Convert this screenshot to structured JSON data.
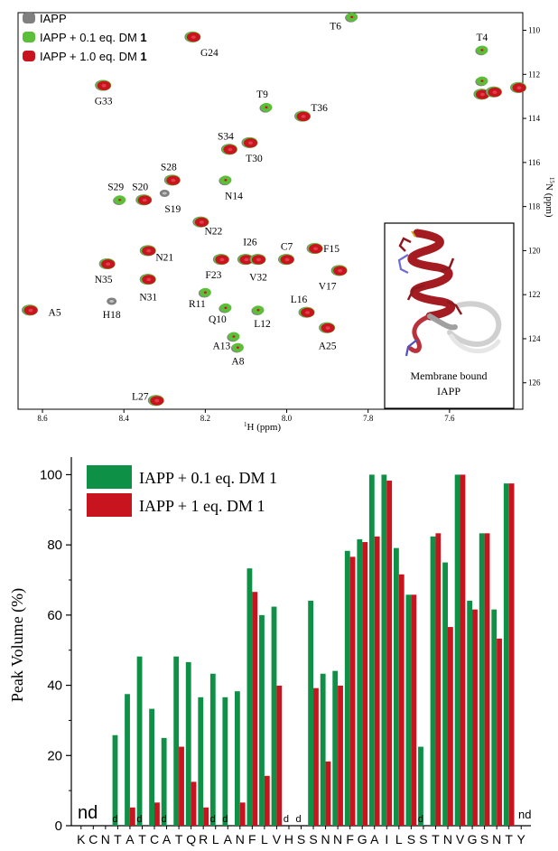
{
  "chart_data": [
    {
      "type": "scatter",
      "xlabel_sup": "1",
      "xlabel": "H (ppm)",
      "ylabel_sup": "15",
      "ylabel": "N (ppm)",
      "xlim": [
        8.66,
        7.42
      ],
      "ylim": [
        127.2,
        109.2
      ],
      "x_ticks": [
        "8.6",
        "8.4",
        "8.2",
        "8.0",
        "7.8",
        "7.6"
      ],
      "x_tick_values": [
        8.6,
        8.4,
        8.2,
        8.0,
        7.8,
        7.6
      ],
      "y_ticks": [
        "110",
        "112",
        "114",
        "116",
        "118",
        "120",
        "122",
        "124",
        "126"
      ],
      "y_tick_values": [
        110,
        112,
        114,
        116,
        118,
        120,
        122,
        124,
        126
      ],
      "legend": [
        {
          "name": "IAPP",
          "bold_suffix": "",
          "color": "#808080"
        },
        {
          "name": "IAPP + 0.1 eq. DM ",
          "bold_suffix": "1",
          "color": "#5cbf3a"
        },
        {
          "name": "IAPP + 1.0 eq. DM ",
          "bold_suffix": "1",
          "color": "#c8141e"
        }
      ],
      "peaks": [
        {
          "label": "T6",
          "h": 7.84,
          "n": 109.4,
          "state": "green",
          "lx": 7.88,
          "ly": 109.8
        },
        {
          "label": "T4",
          "h": 7.52,
          "n": 110.9,
          "state": "green",
          "lx": 7.52,
          "ly": 110.3
        },
        {
          "label": "G24",
          "h": 8.23,
          "n": 110.3,
          "state": "red",
          "lx": 8.19,
          "ly": 111.0
        },
        {
          "label": "G33",
          "h": 8.45,
          "n": 112.5,
          "state": "red",
          "lx": 8.45,
          "ly": 113.2
        },
        {
          "label": "T9",
          "h": 8.05,
          "n": 113.5,
          "state": "green",
          "lx": 8.06,
          "ly": 112.9
        },
        {
          "label": "T36",
          "h": 7.96,
          "n": 113.9,
          "state": "red",
          "lx": 7.92,
          "ly": 113.5
        },
        {
          "label": "S34",
          "h": 8.14,
          "n": 115.4,
          "state": "red",
          "lx": 8.15,
          "ly": 114.8
        },
        {
          "label": "T30",
          "h": 8.09,
          "n": 115.1,
          "state": "red",
          "lx": 8.08,
          "ly": 115.8
        },
        {
          "label": "S28",
          "h": 8.28,
          "n": 116.8,
          "state": "red",
          "lx": 8.29,
          "ly": 116.2
        },
        {
          "label": "N14",
          "h": 8.15,
          "n": 116.8,
          "state": "green",
          "lx": 8.13,
          "ly": 117.5
        },
        {
          "label": "S29",
          "h": 8.41,
          "n": 117.7,
          "state": "green",
          "lx": 8.42,
          "ly": 117.1
        },
        {
          "label": "S20",
          "h": 8.35,
          "n": 117.7,
          "state": "red",
          "lx": 8.36,
          "ly": 117.1
        },
        {
          "label": "S19",
          "h": 8.3,
          "n": 117.4,
          "state": "gray",
          "lx": 8.28,
          "ly": 118.1
        },
        {
          "label": "N22",
          "h": 8.21,
          "n": 118.7,
          "state": "red",
          "lx": 8.18,
          "ly": 119.1
        },
        {
          "label": "N21",
          "h": 8.34,
          "n": 120.0,
          "state": "red",
          "lx": 8.3,
          "ly": 120.3
        },
        {
          "label": "C7",
          "h": 8.0,
          "n": 120.4,
          "state": "red",
          "lx": 8.0,
          "ly": 119.8
        },
        {
          "label": "F15",
          "h": 7.93,
          "n": 119.9,
          "state": "red",
          "lx": 7.89,
          "ly": 119.9
        },
        {
          "label": "I26",
          "h": 8.1,
          "n": 120.4,
          "state": "red",
          "lx": 8.09,
          "ly": 119.6
        },
        {
          "label": "F23",
          "h": 8.16,
          "n": 120.4,
          "state": "red",
          "lx": 8.18,
          "ly": 121.1
        },
        {
          "label": "V32",
          "h": 8.07,
          "n": 120.4,
          "state": "red",
          "lx": 8.07,
          "ly": 121.2
        },
        {
          "label": "V17",
          "h": 7.87,
          "n": 120.9,
          "state": "red",
          "lx": 7.9,
          "ly": 121.6
        },
        {
          "label": "N35",
          "h": 8.44,
          "n": 120.6,
          "state": "red",
          "lx": 8.45,
          "ly": 121.3
        },
        {
          "label": "N31",
          "h": 8.34,
          "n": 121.3,
          "state": "red",
          "lx": 8.34,
          "ly": 122.1
        },
        {
          "label": "R11",
          "h": 8.2,
          "n": 121.9,
          "state": "green",
          "lx": 8.22,
          "ly": 122.4
        },
        {
          "label": "A5",
          "h": 8.63,
          "n": 122.7,
          "state": "red",
          "lx": 8.57,
          "ly": 122.8
        },
        {
          "label": "H18",
          "h": 8.43,
          "n": 122.3,
          "state": "gray",
          "lx": 8.43,
          "ly": 122.9
        },
        {
          "label": "Q10",
          "h": 8.15,
          "n": 122.6,
          "state": "green",
          "lx": 8.17,
          "ly": 123.1
        },
        {
          "label": "L12",
          "h": 8.07,
          "n": 122.7,
          "state": "green",
          "lx": 8.06,
          "ly": 123.3
        },
        {
          "label": "L16",
          "h": 7.95,
          "n": 122.8,
          "state": "red",
          "lx": 7.97,
          "ly": 122.2
        },
        {
          "label": "A13",
          "h": 8.13,
          "n": 123.9,
          "state": "green",
          "lx": 8.16,
          "ly": 124.3
        },
        {
          "label": "A8",
          "h": 8.12,
          "n": 124.4,
          "state": "green",
          "lx": 8.12,
          "ly": 125.0
        },
        {
          "label": "A25",
          "h": 7.9,
          "n": 123.5,
          "state": "red",
          "lx": 7.9,
          "ly": 124.3
        },
        {
          "label": "L27",
          "h": 8.32,
          "n": 126.8,
          "state": "red",
          "lx": 8.36,
          "ly": 126.6
        },
        {
          "label": "",
          "h": 7.52,
          "n": 112.3,
          "state": "green",
          "lx": 0,
          "ly": 0
        },
        {
          "label": "",
          "h": 7.52,
          "n": 112.9,
          "state": "red",
          "lx": 0,
          "ly": 0
        },
        {
          "label": "",
          "h": 7.49,
          "n": 112.8,
          "state": "red",
          "lx": 0,
          "ly": 0
        },
        {
          "label": "",
          "h": 7.43,
          "n": 112.6,
          "state": "red",
          "lx": 0,
          "ly": 0
        }
      ],
      "inset": {
        "caption_line1": "Membrane bound",
        "caption_line2": "IAPP"
      }
    },
    {
      "type": "bar",
      "ylabel": "Peak Volume (%)",
      "ylim": [
        0,
        105
      ],
      "y_ticks": [
        "0",
        "20",
        "40",
        "60",
        "80",
        "100"
      ],
      "y_tick_values": [
        0,
        20,
        40,
        60,
        80,
        100
      ],
      "categories": [
        "K",
        "C",
        "N",
        "T",
        "A",
        "T",
        "C",
        "A",
        "T",
        "Q",
        "R",
        "L",
        "A",
        "N",
        "F",
        "L",
        "V",
        "H",
        "S",
        "S",
        "N",
        "N",
        "F",
        "G",
        "A",
        "I",
        "L",
        "S",
        "S",
        "T",
        "N",
        "V",
        "G",
        "S",
        "N",
        "T",
        "Y"
      ],
      "series": [
        {
          "name": "IAPP + 0.1 eq. DM 1",
          "color": "#0e9147",
          "values": [
            null,
            null,
            null,
            25.8,
            37.5,
            48.2,
            33.3,
            25.0,
            48.2,
            46.6,
            36.6,
            43.3,
            36.6,
            38.3,
            73.3,
            60.0,
            62.4,
            null,
            null,
            64.1,
            43.3,
            44.1,
            78.3,
            81.6,
            100,
            100,
            79.1,
            65.8,
            22.5,
            82.4,
            75.0,
            100,
            64.1,
            83.3,
            61.6,
            97.5,
            null
          ]
        },
        {
          "name": "IAPP + 1 eq. DM 1",
          "color": "#c8141e",
          "values": [
            null,
            null,
            null,
            null,
            5.2,
            null,
            6.6,
            null,
            22.5,
            12.5,
            5.2,
            null,
            null,
            6.6,
            66.6,
            14.2,
            39.9,
            null,
            null,
            39.2,
            18.3,
            39.9,
            76.6,
            80.8,
            82.4,
            98.3,
            71.6,
            65.8,
            null,
            83.3,
            56.6,
            100,
            61.6,
            83.3,
            53.3,
            97.5,
            null
          ]
        }
      ],
      "d_marks": [
        {
          "index": 3,
          "text": "d"
        },
        {
          "index": 5,
          "text": "d"
        },
        {
          "index": 7,
          "text": "d"
        },
        {
          "index": 11,
          "text": "d"
        },
        {
          "index": 12,
          "text": "d"
        },
        {
          "index": 17,
          "text": "d"
        },
        {
          "index": 18,
          "text": "d"
        },
        {
          "index": 28,
          "text": "d"
        }
      ],
      "nd_left": "nd",
      "nd_right": "nd"
    }
  ]
}
